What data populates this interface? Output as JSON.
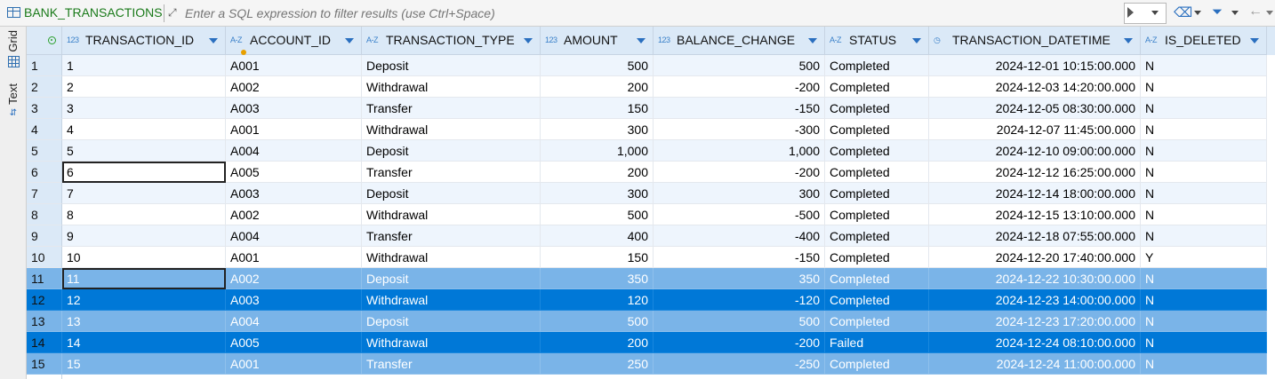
{
  "toolbar": {
    "table_name": "BANK_TRANSACTIONS",
    "filter_placeholder": "Enter a SQL expression to filter results (use Ctrl+Space)",
    "icons": [
      "table-icon",
      "expand-icon",
      "play-icon",
      "dropdown-icon",
      "eraser-icon",
      "filter-icon",
      "back-arrow-icon"
    ]
  },
  "sidebar": {
    "grid_label": "Grid",
    "text_label": "Text"
  },
  "columns": [
    {
      "type": "123",
      "name": "TRANSACTION_ID"
    },
    {
      "type": "A-Z",
      "name": "ACCOUNT_ID"
    },
    {
      "type": "A-Z",
      "name": "TRANSACTION_TYPE"
    },
    {
      "type": "123",
      "name": "AMOUNT"
    },
    {
      "type": "123",
      "name": "BALANCE_CHANGE"
    },
    {
      "type": "A-Z",
      "name": "STATUS"
    },
    {
      "type": "◷",
      "name": "TRANSACTION_DATETIME"
    },
    {
      "type": "A-Z",
      "name": "IS_DELETED"
    }
  ],
  "rows": [
    {
      "n": "1",
      "id": "1",
      "acct": "A001",
      "type": "Deposit",
      "amount": "500",
      "change": "500",
      "status": "Completed",
      "dt": "2024-12-01 10:15:00.000",
      "del": "N",
      "sel": ""
    },
    {
      "n": "2",
      "id": "2",
      "acct": "A002",
      "type": "Withdrawal",
      "amount": "200",
      "change": "-200",
      "status": "Completed",
      "dt": "2024-12-03 14:20:00.000",
      "del": "N",
      "sel": ""
    },
    {
      "n": "3",
      "id": "3",
      "acct": "A003",
      "type": "Transfer",
      "amount": "150",
      "change": "-150",
      "status": "Completed",
      "dt": "2024-12-05 08:30:00.000",
      "del": "N",
      "sel": ""
    },
    {
      "n": "4",
      "id": "4",
      "acct": "A001",
      "type": "Withdrawal",
      "amount": "300",
      "change": "-300",
      "status": "Completed",
      "dt": "2024-12-07 11:45:00.000",
      "del": "N",
      "sel": ""
    },
    {
      "n": "5",
      "id": "5",
      "acct": "A004",
      "type": "Deposit",
      "amount": "1,000",
      "change": "1,000",
      "status": "Completed",
      "dt": "2024-12-10 09:00:00.000",
      "del": "N",
      "sel": ""
    },
    {
      "n": "6",
      "id": "6",
      "acct": "A005",
      "type": "Transfer",
      "amount": "200",
      "change": "-200",
      "status": "Completed",
      "dt": "2024-12-12 16:25:00.000",
      "del": "N",
      "sel": "",
      "focus": true
    },
    {
      "n": "7",
      "id": "7",
      "acct": "A003",
      "type": "Deposit",
      "amount": "300",
      "change": "300",
      "status": "Completed",
      "dt": "2024-12-14 18:00:00.000",
      "del": "N",
      "sel": ""
    },
    {
      "n": "8",
      "id": "8",
      "acct": "A002",
      "type": "Withdrawal",
      "amount": "500",
      "change": "-500",
      "status": "Completed",
      "dt": "2024-12-15 13:10:00.000",
      "del": "N",
      "sel": ""
    },
    {
      "n": "9",
      "id": "9",
      "acct": "A004",
      "type": "Transfer",
      "amount": "400",
      "change": "-400",
      "status": "Completed",
      "dt": "2024-12-18 07:55:00.000",
      "del": "N",
      "sel": ""
    },
    {
      "n": "10",
      "id": "10",
      "acct": "A001",
      "type": "Withdrawal",
      "amount": "150",
      "change": "-150",
      "status": "Completed",
      "dt": "2024-12-20 17:40:00.000",
      "del": "Y",
      "sel": ""
    },
    {
      "n": "11",
      "id": "11",
      "acct": "A002",
      "type": "Deposit",
      "amount": "350",
      "change": "350",
      "status": "Completed",
      "dt": "2024-12-22 10:30:00.000",
      "del": "N",
      "sel": "light",
      "focus": true
    },
    {
      "n": "12",
      "id": "12",
      "acct": "A003",
      "type": "Withdrawal",
      "amount": "120",
      "change": "-120",
      "status": "Completed",
      "dt": "2024-12-23 14:00:00.000",
      "del": "N",
      "sel": "dark"
    },
    {
      "n": "13",
      "id": "13",
      "acct": "A004",
      "type": "Deposit",
      "amount": "500",
      "change": "500",
      "status": "Completed",
      "dt": "2024-12-23 17:20:00.000",
      "del": "N",
      "sel": "light"
    },
    {
      "n": "14",
      "id": "14",
      "acct": "A005",
      "type": "Withdrawal",
      "amount": "200",
      "change": "-200",
      "status": "Failed",
      "dt": "2024-12-24 08:10:00.000",
      "del": "N",
      "sel": "dark"
    },
    {
      "n": "15",
      "id": "15",
      "acct": "A001",
      "type": "Transfer",
      "amount": "250",
      "change": "-250",
      "status": "Completed",
      "dt": "2024-12-24 11:00:00.000",
      "del": "N",
      "sel": "light"
    }
  ],
  "colors": {
    "header_bg": "#dbe9f7",
    "stripe": "#eef5fd",
    "sel_light": "#7ab4e8",
    "sel_dark": "#0078d7",
    "title_green": "#1a7a1a"
  }
}
